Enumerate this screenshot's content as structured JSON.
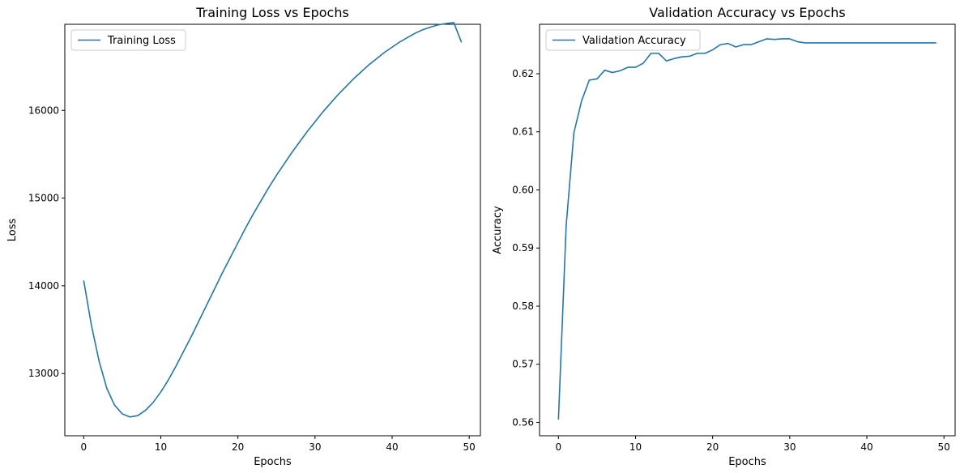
{
  "colors": {
    "line": "#1f77b4",
    "axis": "#000000",
    "legend_border": "#cccccc"
  },
  "chart_data": [
    {
      "type": "line",
      "title": "Training Loss vs Epochs",
      "xlabel": "Epochs",
      "ylabel": "Loss",
      "xlim": [
        -2.45,
        51.45
      ],
      "ylim": [
        12291,
        16981
      ],
      "xticks": [
        0,
        10,
        20,
        30,
        40,
        50
      ],
      "yticks": [
        13000,
        14000,
        15000,
        16000
      ],
      "grid": false,
      "legend_position": "top-left",
      "series": [
        {
          "name": "Training Loss",
          "x": [
            0,
            1,
            2,
            3,
            4,
            5,
            6,
            7,
            8,
            9,
            10,
            11,
            12,
            13,
            14,
            15,
            16,
            17,
            18,
            19,
            20,
            21,
            22,
            23,
            24,
            25,
            26,
            27,
            28,
            29,
            30,
            31,
            32,
            33,
            34,
            35,
            36,
            37,
            38,
            39,
            40,
            41,
            42,
            43,
            44,
            45,
            46,
            47,
            48,
            49
          ],
          "values": [
            14060,
            13550,
            13140,
            12830,
            12640,
            12540,
            12505,
            12520,
            12580,
            12670,
            12790,
            12930,
            13090,
            13260,
            13430,
            13610,
            13790,
            13970,
            14150,
            14320,
            14490,
            14660,
            14820,
            14970,
            15120,
            15260,
            15390,
            15520,
            15640,
            15760,
            15870,
            15980,
            16080,
            16180,
            16270,
            16360,
            16440,
            16520,
            16590,
            16660,
            16720,
            16780,
            16830,
            16880,
            16920,
            16950,
            16975,
            16990,
            17000,
            16775
          ]
        }
      ]
    },
    {
      "type": "line",
      "title": "Validation Accuracy vs Epochs",
      "xlabel": "Epochs",
      "ylabel": "Accuracy",
      "xlim": [
        -2.45,
        51.45
      ],
      "ylim": [
        0.5577,
        0.6285
      ],
      "xticks": [
        0,
        10,
        20,
        30,
        40,
        50
      ],
      "yticks": [
        0.56,
        0.57,
        0.58,
        0.59,
        0.6,
        0.61,
        0.62
      ],
      "grid": false,
      "legend_position": "top-left",
      "series": [
        {
          "name": "Validation Accuracy",
          "x": [
            0,
            1,
            2,
            3,
            4,
            5,
            6,
            7,
            8,
            9,
            10,
            11,
            12,
            13,
            14,
            15,
            16,
            17,
            18,
            19,
            20,
            21,
            22,
            23,
            24,
            25,
            26,
            27,
            28,
            29,
            30,
            31,
            32,
            33,
            34,
            35,
            36,
            37,
            38,
            39,
            40,
            41,
            42,
            43,
            44,
            45,
            46,
            47,
            48,
            49
          ],
          "values": [
            0.5605,
            0.5938,
            0.6098,
            0.6153,
            0.6189,
            0.6191,
            0.6206,
            0.6202,
            0.6205,
            0.6211,
            0.6211,
            0.6218,
            0.6235,
            0.6235,
            0.6222,
            0.6226,
            0.6229,
            0.623,
            0.6235,
            0.6235,
            0.6241,
            0.625,
            0.6252,
            0.6246,
            0.625,
            0.625,
            0.6255,
            0.626,
            0.6259,
            0.626,
            0.626,
            0.6255,
            0.6253,
            0.6253,
            0.6253,
            0.6253,
            0.6253,
            0.6253,
            0.6253,
            0.6253,
            0.6253,
            0.6253,
            0.6253,
            0.6253,
            0.6253,
            0.6253,
            0.6253,
            0.6253,
            0.6253,
            0.6253
          ]
        }
      ]
    }
  ]
}
